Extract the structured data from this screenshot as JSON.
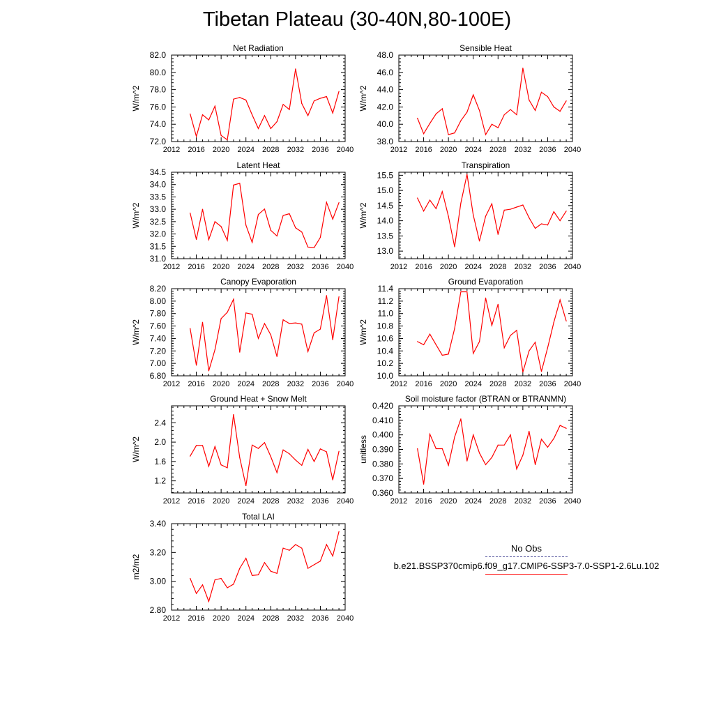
{
  "page": {
    "title": "Tibetan Plateau (30-40N,80-100E)"
  },
  "legend": {
    "obs_label": "No Obs",
    "model_label": "b.e21.BSSP370cmip6.f09_g17.CMIP6-SSP3-7.0-SSP1-2.6Lu.102",
    "obs_color": "#5a5aa0",
    "model_color": "#ff0000"
  },
  "chart_data": [
    {
      "type": "line",
      "title": "Net Radiation",
      "ylabel": "W/m^2",
      "xlim": [
        2012,
        2040
      ],
      "ylim": [
        72.0,
        82.0
      ],
      "xticks": [
        "2012",
        "2016",
        "2020",
        "2024",
        "2028",
        "2032",
        "2036",
        "2040"
      ],
      "yticks": [
        "72.0",
        "74.0",
        "76.0",
        "78.0",
        "80.0",
        "82.0"
      ],
      "x": [
        2015,
        2016,
        2017,
        2018,
        2019,
        2020,
        2021,
        2022,
        2023,
        2024,
        2025,
        2026,
        2027,
        2028,
        2029,
        2030,
        2031,
        2032,
        2033,
        2034,
        2035,
        2036,
        2037,
        2038,
        2039
      ],
      "values": [
        75.2,
        72.6,
        75.1,
        74.5,
        76.1,
        72.7,
        72.2,
        76.9,
        77.1,
        76.8,
        75.1,
        73.5,
        75.0,
        73.5,
        74.3,
        76.3,
        75.7,
        80.4,
        76.4,
        75.0,
        76.7,
        77.0,
        77.2,
        75.3,
        77.8
      ]
    },
    {
      "type": "line",
      "title": "Sensible Heat",
      "ylabel": "W/m^2",
      "xlim": [
        2012,
        2040
      ],
      "ylim": [
        38.0,
        48.0
      ],
      "xticks": [
        "2012",
        "2016",
        "2020",
        "2024",
        "2028",
        "2032",
        "2036",
        "2040"
      ],
      "yticks": [
        "38.0",
        "40.0",
        "42.0",
        "44.0",
        "46.0",
        "48.0"
      ],
      "x": [
        2015,
        2016,
        2017,
        2018,
        2019,
        2020,
        2021,
        2022,
        2023,
        2024,
        2025,
        2026,
        2027,
        2028,
        2029,
        2030,
        2031,
        2032,
        2033,
        2034,
        2035,
        2036,
        2037,
        2038,
        2039
      ],
      "values": [
        40.7,
        38.9,
        40.1,
        41.2,
        41.8,
        38.8,
        39.0,
        40.4,
        41.4,
        43.4,
        41.6,
        38.8,
        40.0,
        39.6,
        41.1,
        41.7,
        41.1,
        46.5,
        42.8,
        41.6,
        43.7,
        43.2,
        42.0,
        41.5,
        42.7
      ]
    },
    {
      "type": "line",
      "title": "Latent Heat",
      "ylabel": "W/m^2",
      "xlim": [
        2012,
        2040
      ],
      "ylim": [
        31.0,
        34.5
      ],
      "xticks": [
        "2012",
        "2016",
        "2020",
        "2024",
        "2028",
        "2032",
        "2036",
        "2040"
      ],
      "yticks": [
        "31.0",
        "31.5",
        "32.0",
        "32.5",
        "33.0",
        "33.5",
        "34.0",
        "34.5"
      ],
      "x": [
        2015,
        2016,
        2017,
        2018,
        2019,
        2020,
        2021,
        2022,
        2023,
        2024,
        2025,
        2026,
        2027,
        2028,
        2029,
        2030,
        2031,
        2032,
        2033,
        2034,
        2035,
        2036,
        2037,
        2038,
        2039
      ],
      "values": [
        32.85,
        31.78,
        33.0,
        31.77,
        32.5,
        32.3,
        31.74,
        33.98,
        34.05,
        32.36,
        31.66,
        32.79,
        33.01,
        32.15,
        31.92,
        32.75,
        32.82,
        32.25,
        32.08,
        31.47,
        31.45,
        31.86,
        33.28,
        32.6,
        33.27
      ]
    },
    {
      "type": "line",
      "title": "Transpiration",
      "ylabel": "W/m^2",
      "xlim": [
        2012,
        2040
      ],
      "ylim": [
        12.75,
        15.6
      ],
      "xticks": [
        "2012",
        "2016",
        "2020",
        "2024",
        "2028",
        "2032",
        "2036",
        "2040"
      ],
      "yticks": [
        "13.0",
        "13.5",
        "14.0",
        "14.5",
        "15.0",
        "15.5"
      ],
      "x": [
        2015,
        2016,
        2017,
        2018,
        2019,
        2020,
        2021,
        2022,
        2023,
        2024,
        2025,
        2026,
        2027,
        2028,
        2029,
        2030,
        2031,
        2032,
        2033,
        2034,
        2035,
        2036,
        2037,
        2038,
        2039
      ],
      "values": [
        14.75,
        14.32,
        14.68,
        14.4,
        14.96,
        14.15,
        13.14,
        14.58,
        15.53,
        14.19,
        13.33,
        14.15,
        14.56,
        13.55,
        14.35,
        14.38,
        14.45,
        14.52,
        14.1,
        13.75,
        13.9,
        13.86,
        14.3,
        14.0,
        14.32
      ]
    },
    {
      "type": "line",
      "title": "Canopy Evaporation",
      "ylabel": "W/m^2",
      "xlim": [
        2012,
        2040
      ],
      "ylim": [
        6.8,
        8.2
      ],
      "xticks": [
        "2012",
        "2016",
        "2020",
        "2024",
        "2028",
        "2032",
        "2036",
        "2040"
      ],
      "yticks": [
        "6.80",
        "7.00",
        "7.20",
        "7.40",
        "7.60",
        "7.80",
        "8.00",
        "8.20"
      ],
      "x": [
        2015,
        2016,
        2017,
        2018,
        2019,
        2020,
        2021,
        2022,
        2023,
        2024,
        2025,
        2026,
        2027,
        2028,
        2029,
        2030,
        2031,
        2032,
        2033,
        2034,
        2035,
        2036,
        2037,
        2038,
        2039
      ],
      "values": [
        7.56,
        6.97,
        7.66,
        6.88,
        7.22,
        7.72,
        7.82,
        8.03,
        7.18,
        7.81,
        7.79,
        7.4,
        7.64,
        7.46,
        7.11,
        7.7,
        7.64,
        7.65,
        7.63,
        7.19,
        7.49,
        7.55,
        8.09,
        7.38,
        8.07
      ]
    },
    {
      "type": "line",
      "title": "Ground Evaporation",
      "ylabel": "W/m^2",
      "xlim": [
        2012,
        2040
      ],
      "ylim": [
        10.0,
        11.4
      ],
      "xticks": [
        "2012",
        "2016",
        "2020",
        "2024",
        "2028",
        "2032",
        "2036",
        "2040"
      ],
      "yticks": [
        "10.0",
        "10.2",
        "10.4",
        "10.6",
        "10.8",
        "11.0",
        "11.2",
        "11.4"
      ],
      "x": [
        2015,
        2016,
        2017,
        2018,
        2019,
        2020,
        2021,
        2022,
        2023,
        2024,
        2025,
        2026,
        2027,
        2028,
        2029,
        2030,
        2031,
        2032,
        2033,
        2034,
        2035,
        2036,
        2037,
        2038,
        2039
      ],
      "values": [
        10.55,
        10.5,
        10.67,
        10.5,
        10.33,
        10.35,
        10.76,
        11.35,
        11.35,
        10.36,
        10.55,
        11.25,
        10.81,
        11.15,
        10.45,
        10.65,
        10.73,
        10.06,
        10.4,
        10.54,
        10.07,
        10.45,
        10.86,
        11.22,
        10.88
      ]
    },
    {
      "type": "line",
      "title": "Ground Heat + Snow Melt",
      "ylabel": "W/m^2",
      "xlim": [
        2012,
        2040
      ],
      "ylim": [
        0.95,
        2.75
      ],
      "xticks": [
        "2012",
        "2016",
        "2020",
        "2024",
        "2028",
        "2032",
        "2036",
        "2040"
      ],
      "yticks": [
        "1.2",
        "1.6",
        "2.0",
        "2.4"
      ],
      "x": [
        2015,
        2016,
        2017,
        2018,
        2019,
        2020,
        2021,
        2022,
        2023,
        2024,
        2025,
        2026,
        2027,
        2028,
        2029,
        2030,
        2031,
        2032,
        2033,
        2034,
        2035,
        2036,
        2037,
        2038,
        2039
      ],
      "values": [
        1.71,
        1.93,
        1.93,
        1.5,
        1.91,
        1.53,
        1.47,
        2.57,
        1.68,
        1.1,
        1.94,
        1.87,
        1.99,
        1.7,
        1.37,
        1.84,
        1.76,
        1.63,
        1.52,
        1.85,
        1.6,
        1.86,
        1.8,
        1.22,
        1.81
      ]
    },
    {
      "type": "line",
      "title": "Soil moisture factor (BTRAN or BTRANMN)",
      "ylabel": "unitless",
      "xlim": [
        2012,
        2040
      ],
      "ylim": [
        0.36,
        0.42
      ],
      "xticks": [
        "2012",
        "2016",
        "2020",
        "2024",
        "2028",
        "2032",
        "2036",
        "2040"
      ],
      "yticks": [
        "0.360",
        "0.370",
        "0.380",
        "0.390",
        "0.400",
        "0.410",
        "0.420"
      ],
      "x": [
        2015,
        2016,
        2017,
        2018,
        2019,
        2020,
        2021,
        2022,
        2023,
        2024,
        2025,
        2026,
        2027,
        2028,
        2029,
        2030,
        2031,
        2032,
        2033,
        2034,
        2035,
        2036,
        2037,
        2038,
        2039
      ],
      "values": [
        0.3905,
        0.366,
        0.4005,
        0.3905,
        0.3905,
        0.379,
        0.3985,
        0.411,
        0.382,
        0.4,
        0.3875,
        0.3795,
        0.3845,
        0.393,
        0.393,
        0.4,
        0.3765,
        0.386,
        0.4025,
        0.3795,
        0.397,
        0.3915,
        0.3975,
        0.4065,
        0.4045
      ]
    },
    {
      "type": "line",
      "title": "Total LAI",
      "ylabel": "m2/m2",
      "xlim": [
        2012,
        2040
      ],
      "ylim": [
        2.8,
        3.4
      ],
      "xticks": [
        "2012",
        "2016",
        "2020",
        "2024",
        "2028",
        "2032",
        "2036",
        "2040"
      ],
      "yticks": [
        "2.80",
        "3.00",
        "3.20",
        "3.40"
      ],
      "x": [
        2015,
        2016,
        2017,
        2018,
        2019,
        2020,
        2021,
        2022,
        2023,
        2024,
        2025,
        2026,
        2027,
        2028,
        2029,
        2030,
        2031,
        2032,
        2033,
        2034,
        2035,
        2036,
        2037,
        2038,
        2039
      ],
      "values": [
        3.02,
        2.915,
        2.975,
        2.86,
        3.01,
        3.02,
        2.955,
        2.98,
        3.09,
        3.16,
        3.04,
        3.045,
        3.13,
        3.07,
        3.055,
        3.23,
        3.215,
        3.255,
        3.23,
        3.09,
        3.115,
        3.14,
        3.255,
        3.175,
        3.345
      ]
    }
  ]
}
